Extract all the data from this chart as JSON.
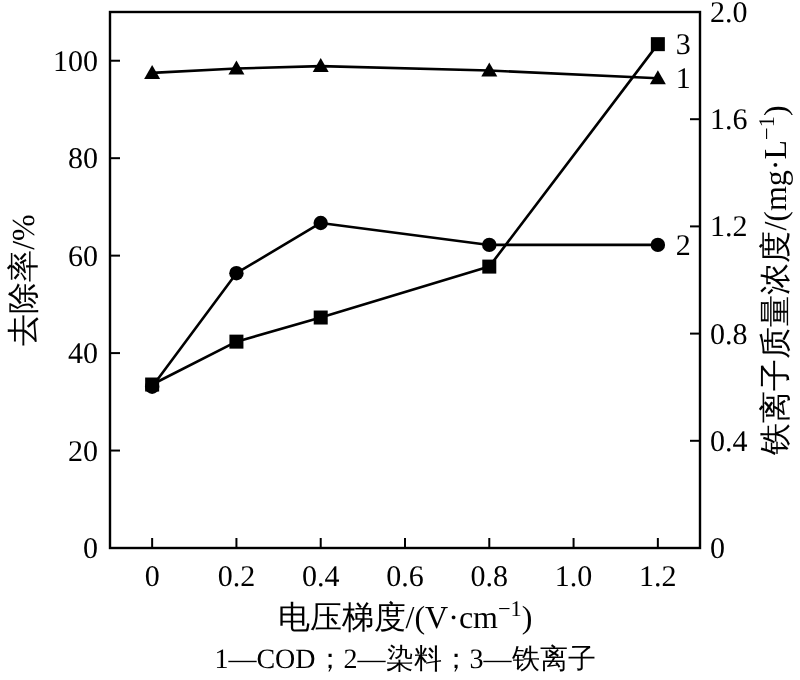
{
  "chart_data": {
    "type": "line",
    "xlabel": "电压梯度/(V·cm$^{−1}$)",
    "ylabel": "去除率/%",
    "y2label": "铁离子质量浓度/(mg·L$^{−1}$)",
    "x": [
      0,
      0.2,
      0.4,
      0.8,
      1.2
    ],
    "xlim": [
      -0.1,
      1.3
    ],
    "xticks": [
      0,
      0.2,
      0.4,
      0.6,
      0.8,
      {
        "value": 1,
        "label": "1.0"
      },
      1.2
    ],
    "ylim": [
      0,
      110
    ],
    "yticks": [
      0,
      20,
      40,
      60,
      80,
      100
    ],
    "y2lim": [
      0,
      2.0
    ],
    "y2ticks": [
      0,
      0.4,
      0.8,
      1.2,
      1.6,
      {
        "value": 2,
        "label": "2.0"
      }
    ],
    "series": [
      {
        "name": "1",
        "color": "#000000",
        "marker": "triangle",
        "values": [
          97.5,
          98.4,
          98.9,
          98,
          96.4
        ]
      },
      {
        "name": "2",
        "color": "#000000",
        "marker": "circle",
        "values": [
          33.1,
          56.4,
          66.7,
          62.2,
          62.2
        ]
      },
      {
        "name": "3",
        "color": "#000000",
        "marker": "square",
        "axis": "y2",
        "values": [
          0.61,
          0.77,
          0.86,
          1.05,
          1.88
        ]
      }
    ],
    "annotations": [
      "1—COD；2—染料；3—铁离子"
    ],
    "grid": false,
    "line_style": "solid"
  }
}
